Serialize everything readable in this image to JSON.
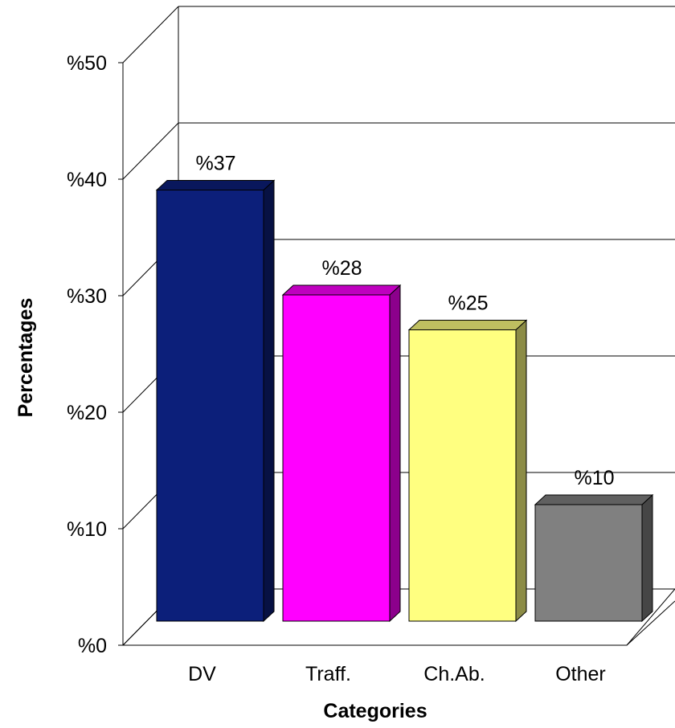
{
  "chart_data": {
    "type": "bar",
    "style": "3d",
    "categories": [
      "DV",
      "Traff.",
      "Ch.Ab.",
      "Other"
    ],
    "values": [
      37,
      28,
      25,
      10
    ],
    "value_labels": [
      "%37",
      "%28",
      "%25",
      "%10"
    ],
    "colors": [
      "#0C1F7A",
      "#FF00FF",
      "#FFFF80",
      "#808080"
    ],
    "title": "",
    "xlabel": "Categories",
    "ylabel": "Percentages",
    "ylim": [
      0,
      50
    ],
    "yticks": [
      0,
      10,
      20,
      30,
      40,
      50
    ],
    "ytick_labels": [
      "%0",
      "%10",
      "%20",
      "%30",
      "%40",
      "%50"
    ],
    "grid": true,
    "legend": false
  }
}
